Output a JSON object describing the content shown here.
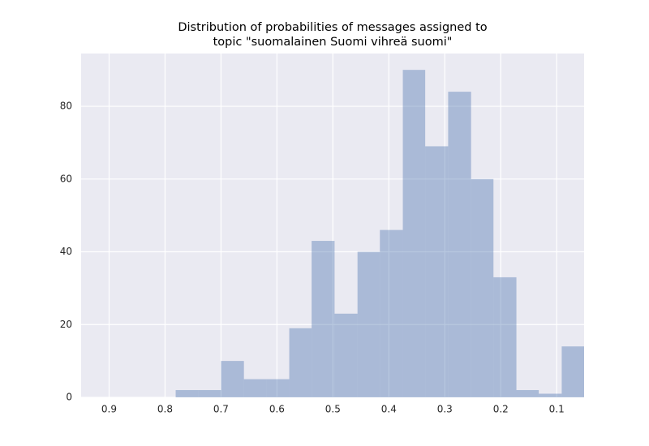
{
  "chart_data": {
    "type": "histogram",
    "title": [
      "Distribution of probabilities of messages assigned to",
      "topic \"suomalainen Suomi vihreä suomi\""
    ],
    "bins": [
      0.051,
      0.091,
      0.132,
      0.172,
      0.213,
      0.253,
      0.294,
      0.335,
      0.375,
      0.416,
      0.456,
      0.497,
      0.538,
      0.578,
      0.619,
      0.659,
      0.7,
      0.74,
      0.781
    ],
    "counts": [
      14,
      1,
      2,
      33,
      60,
      84,
      69,
      90,
      46,
      40,
      23,
      43,
      19,
      5,
      5,
      10,
      2,
      2
    ],
    "color": "#4c72b0",
    "alpha": 0.4,
    "xlim": [
      0.95,
      0.051
    ],
    "xticks": [
      0.9,
      0.8,
      0.7,
      0.6,
      0.5,
      0.4,
      0.3,
      0.2,
      0.1
    ],
    "ylim": [
      0,
      94.5
    ],
    "yticks": [
      0,
      20,
      40,
      60,
      80
    ],
    "grid": true
  }
}
